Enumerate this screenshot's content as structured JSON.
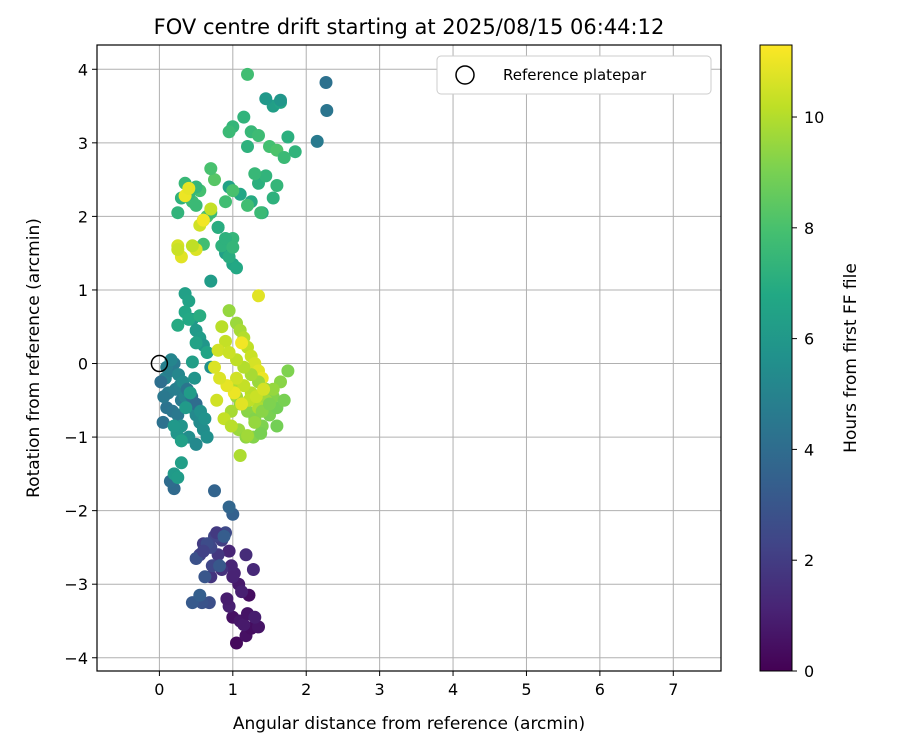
{
  "chart_data": {
    "type": "scatter",
    "title": "FOV centre drift starting at 2025/08/15 06:44:12",
    "xlabel": "Angular distance from reference (arcmin)",
    "ylabel": "Rotation from reference (arcmin)",
    "xlim": [
      -0.85,
      7.65
    ],
    "ylim": [
      -4.18,
      4.33
    ],
    "xticks": [
      0,
      1,
      2,
      3,
      4,
      5,
      6,
      7
    ],
    "yticks": [
      -4,
      -3,
      -2,
      -1,
      0,
      1,
      2,
      3,
      4
    ],
    "grid": true,
    "legend": {
      "label": "Reference platepar",
      "placement": "top-right"
    },
    "reference_point": {
      "x": 0,
      "y": 0
    },
    "colorbar": {
      "label": "Hours from first FF file",
      "range": [
        0,
        11.3
      ],
      "ticks": [
        0,
        2,
        4,
        6,
        8,
        10
      ],
      "colormap": "viridis"
    },
    "series": [
      {
        "hours_from_start": [
          0.3,
          0.5,
          0.4,
          0.6,
          0.5,
          0.7,
          0.8,
          0.6,
          0.9,
          1.0,
          0.4,
          0.8,
          1.1,
          1.2,
          1.3,
          1.0,
          0.9,
          1.4,
          1.1,
          1.2,
          1.6,
          1.7,
          1.8,
          2.0,
          2.2,
          2.4,
          2.1,
          2.3,
          2.6,
          2.5,
          1.9,
          2.8,
          2.2,
          2.7,
          2.9,
          2.4,
          3.2,
          3.4,
          3.0,
          3.1,
          3.3,
          3.5,
          3.7,
          3.6
        ],
        "x": [
          1.05,
          1.18,
          1.25,
          1.35,
          1.0,
          1.1,
          1.15,
          1.2,
          1.3,
          0.95,
          1.22,
          1.08,
          1.02,
          0.98,
          1.28,
          1.12,
          0.92,
          1.18,
          1.0,
          0.95,
          0.85,
          0.7,
          0.8,
          0.6,
          0.55,
          0.7,
          0.85,
          0.75,
          0.65,
          0.9,
          0.78,
          0.5,
          0.6,
          0.68,
          0.58,
          0.72,
          0.45,
          0.55,
          0.62,
          0.82,
          0.88,
          1.0,
          0.95,
          0.75
        ],
        "y": [
          -3.8,
          -3.7,
          -3.6,
          -3.58,
          -3.45,
          -3.5,
          -3.55,
          -3.4,
          -3.45,
          -3.3,
          -3.15,
          -3.0,
          -2.85,
          -2.75,
          -2.8,
          -3.1,
          -3.2,
          -2.6,
          -2.9,
          -2.55,
          -2.8,
          -2.9,
          -2.6,
          -2.45,
          -2.6,
          -2.5,
          -2.4,
          -2.35,
          -2.45,
          -2.3,
          -2.3,
          -2.65,
          -2.55,
          -3.25,
          -3.25,
          -2.75,
          -3.25,
          -3.15,
          -2.9,
          -2.75,
          -2.35,
          -2.05,
          -1.95,
          -1.73
        ]
      },
      {
        "hours_from_start": [
          3.9,
          4.0,
          4.2,
          4.3,
          4.4,
          4.5,
          4.6,
          4.7,
          4.8,
          4.9,
          5.0,
          5.1,
          5.2,
          5.3,
          5.4,
          5.5,
          5.6,
          5.0,
          4.8,
          4.6,
          5.2,
          5.4,
          4.4,
          4.2,
          4.0,
          5.6,
          5.7,
          5.8,
          5.5,
          5.3,
          4.1,
          4.5,
          4.9,
          5.1,
          5.9,
          6.0,
          6.1,
          6.2,
          5.8,
          5.6
        ],
        "x": [
          0.2,
          0.15,
          0.05,
          0.1,
          0.18,
          0.25,
          0.3,
          0.12,
          0.22,
          0.28,
          0.35,
          0.4,
          0.45,
          0.5,
          0.55,
          0.6,
          0.65,
          0.08,
          0.14,
          0.2,
          0.26,
          0.32,
          0.38,
          0.44,
          0.5,
          0.56,
          0.62,
          0.3,
          0.4,
          0.5,
          0.02,
          0.06,
          0.1,
          0.16,
          0.24,
          0.3,
          0.36,
          0.42,
          0.48,
          0.7
        ],
        "y": [
          -1.7,
          -1.6,
          -0.8,
          -0.6,
          -0.65,
          -0.7,
          -0.5,
          -0.4,
          -0.35,
          -0.3,
          -0.45,
          -0.55,
          -0.6,
          -0.7,
          -0.8,
          -0.9,
          -1.0,
          -0.2,
          -0.1,
          0.0,
          -0.15,
          -0.25,
          -0.35,
          -0.45,
          -0.55,
          -0.65,
          -0.75,
          -0.85,
          -1.0,
          -1.1,
          -0.25,
          -0.45,
          -0.05,
          0.05,
          -0.95,
          -1.05,
          -0.6,
          -0.4,
          -0.2,
          -0.05
        ]
      },
      {
        "hours_from_start": [
          6.1,
          6.2,
          6.3,
          6.4,
          6.5,
          6.0,
          6.1,
          6.2,
          5.9,
          6.6,
          6.7,
          6.8,
          6.9,
          7.0,
          6.4,
          6.5,
          6.3,
          6.0
        ],
        "x": [
          0.2,
          0.25,
          0.3,
          0.35,
          0.4,
          0.45,
          0.5,
          0.55,
          0.6,
          0.65,
          0.35,
          0.4,
          0.25,
          0.55,
          0.3,
          0.5,
          0.45,
          0.2
        ],
        "y": [
          -1.5,
          -1.55,
          -1.35,
          0.95,
          0.85,
          0.6,
          0.45,
          0.35,
          0.25,
          0.15,
          0.7,
          0.6,
          0.52,
          0.65,
          -1.05,
          0.28,
          0.02,
          -0.85
        ]
      },
      {
        "hours_from_start": [
          6.2,
          6.4,
          6.6,
          6.8,
          7.0,
          7.2,
          7.4,
          6.5,
          6.7,
          6.9,
          7.1,
          7.3,
          6.3,
          6.6,
          4.2,
          4.4,
          4.6,
          5.9,
          6.0
        ],
        "x": [
          0.7,
          0.9,
          1.0,
          1.05,
          0.95,
          0.85,
          1.0,
          0.95,
          1.1,
          1.25,
          1.35,
          1.45,
          1.55,
          1.65,
          2.27,
          2.28,
          2.15,
          1.65,
          1.45
        ],
        "y": [
          1.12,
          1.5,
          1.35,
          1.3,
          1.45,
          1.6,
          1.7,
          2.4,
          2.3,
          2.2,
          2.45,
          2.55,
          3.5,
          3.55,
          3.82,
          3.44,
          3.02,
          3.58,
          3.6
        ]
      },
      {
        "hours_from_start": [
          7.3,
          7.5,
          7.7,
          7.9,
          8.1,
          8.3,
          7.4,
          7.6,
          7.8,
          8.0,
          8.2,
          7.2,
          7.4,
          7.6,
          7.8,
          8.0,
          7.3,
          7.5,
          7.7,
          7.9,
          8.1,
          7.1,
          7.3,
          7.5,
          7.2,
          7.4,
          7.6,
          7.8,
          7.0,
          7.2,
          7.4,
          7.6,
          7.8,
          7.0,
          7.2,
          7.4,
          7.6,
          7.8
        ],
        "x": [
          0.25,
          0.35,
          0.45,
          0.55,
          0.65,
          0.75,
          0.4,
          0.5,
          0.6,
          0.7,
          0.8,
          0.3,
          0.5,
          0.7,
          0.9,
          1.0,
          1.15,
          1.25,
          1.35,
          1.5,
          1.6,
          1.75,
          1.85,
          1.3,
          1.2,
          1.0,
          0.95,
          1.2,
          1.4,
          1.55,
          1.6,
          1.7,
          0.6,
          0.8,
          0.9,
          1.0,
          1.38,
          1.2
        ],
        "y": [
          2.05,
          2.45,
          2.2,
          2.35,
          2.0,
          2.5,
          2.3,
          2.15,
          1.95,
          2.65,
          1.85,
          2.25,
          2.4,
          2.05,
          2.2,
          2.35,
          3.35,
          3.15,
          3.1,
          2.95,
          2.9,
          3.08,
          2.88,
          2.58,
          2.95,
          3.22,
          3.15,
          3.93,
          2.05,
          2.25,
          2.42,
          2.8,
          1.62,
          1.85,
          1.7,
          1.58,
          2.05,
          2.15
        ]
      },
      {
        "hours_from_start": [
          10.6,
          10.8,
          11.0,
          10.9,
          10.7,
          10.5,
          11.1,
          10.4,
          10.3,
          10.2
        ],
        "x": [
          0.25,
          0.3,
          0.35,
          0.4,
          0.5,
          0.55,
          0.6,
          0.25,
          0.7,
          0.45
        ],
        "y": [
          1.6,
          1.45,
          2.28,
          2.38,
          1.55,
          1.88,
          1.95,
          1.55,
          2.1,
          1.6
        ]
      },
      {
        "hours_from_start": [
          9.5,
          9.6,
          9.8,
          10.0,
          10.2,
          10.4,
          10.6,
          10.8,
          11.0,
          10.1,
          10.3,
          10.5,
          10.7,
          9.9,
          9.7,
          9.4,
          9.3,
          9.2,
          9.1,
          9.0,
          8.9,
          9.2,
          9.4,
          9.6,
          9.8,
          10.0,
          10.2,
          10.4,
          9.0,
          9.1,
          9.3,
          9.5,
          9.7,
          9.9,
          10.1,
          10.3,
          10.5,
          9.8,
          9.6,
          9.4,
          9.2,
          9.0,
          10.2,
          10.4,
          10.6,
          10.8,
          11.0,
          10.9,
          10.7,
          10.5,
          10.3,
          10.1,
          9.9,
          9.7,
          9.5,
          9.3,
          9.1,
          8.9,
          10.8,
          11.1
        ],
        "x": [
          0.95,
          1.05,
          1.1,
          1.15,
          1.2,
          1.25,
          1.3,
          1.35,
          1.4,
          0.85,
          0.9,
          0.8,
          0.75,
          1.0,
          1.05,
          1.1,
          1.2,
          1.3,
          1.4,
          1.5,
          1.6,
          1.55,
          1.45,
          1.35,
          1.25,
          1.15,
          1.05,
          0.95,
          1.7,
          1.75,
          1.65,
          1.55,
          1.45,
          1.35,
          1.25,
          1.15,
          1.05,
          0.98,
          1.08,
          1.18,
          1.28,
          1.38,
          1.22,
          1.32,
          1.42,
          1.12,
          1.02,
          0.92,
          0.82,
          0.78,
          0.88,
          0.98,
          1.1,
          1.2,
          1.3,
          1.4,
          1.5,
          1.6,
          1.35,
          1.12
        ],
        "y": [
          0.72,
          0.55,
          0.45,
          0.35,
          0.22,
          0.1,
          0.0,
          -0.1,
          -0.2,
          0.5,
          0.3,
          0.18,
          -0.05,
          -0.3,
          -0.45,
          -0.55,
          -0.65,
          -0.75,
          -0.85,
          -0.7,
          -0.6,
          -0.45,
          -0.35,
          -0.25,
          -0.15,
          -0.05,
          0.05,
          0.15,
          -0.5,
          -0.1,
          -0.25,
          -0.35,
          -0.5,
          -0.6,
          -0.4,
          -0.3,
          -0.2,
          -0.65,
          -0.9,
          -1.0,
          -1.0,
          -0.95,
          -0.5,
          -0.45,
          -0.35,
          -0.55,
          -0.4,
          -0.3,
          -0.2,
          -0.5,
          -0.75,
          -0.85,
          -1.25,
          -0.98,
          -0.8,
          -0.65,
          -0.55,
          -0.85,
          0.92,
          0.28
        ]
      }
    ]
  }
}
